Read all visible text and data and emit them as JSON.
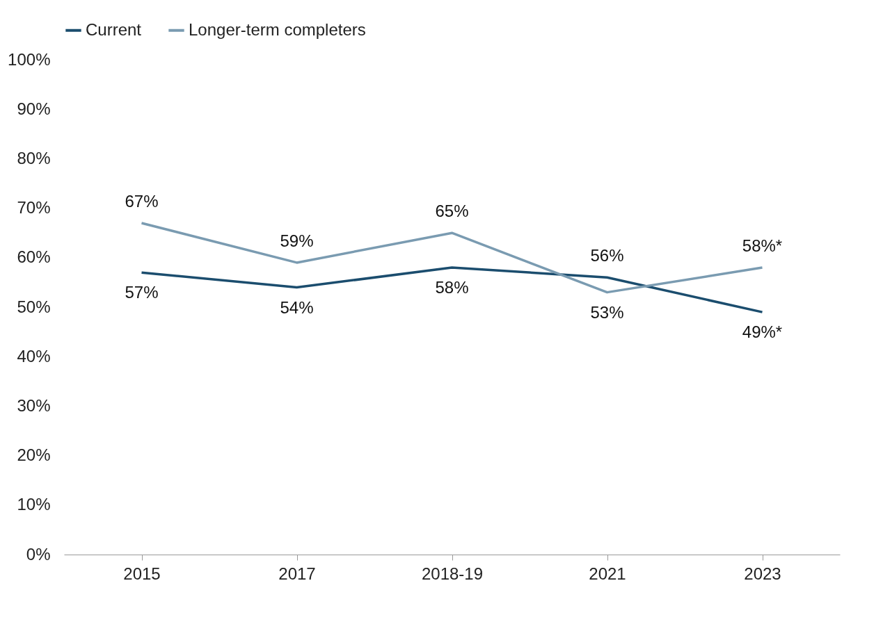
{
  "chart_data": {
    "type": "line",
    "categories": [
      "2015",
      "2017",
      "2018-19",
      "2021",
      "2023"
    ],
    "series": [
      {
        "name": "Current",
        "color": "#1b4d6e",
        "values": [
          57,
          54,
          58,
          56,
          49
        ],
        "value_labels": [
          "57%",
          "54%",
          "58%",
          "56%",
          "49%*"
        ]
      },
      {
        "name": "Longer-term completers",
        "color": "#7a9bb1",
        "values": [
          67,
          59,
          65,
          53,
          58
        ],
        "value_labels": [
          "67%",
          "59%",
          "65%",
          "53%",
          "58%*"
        ]
      }
    ],
    "ylim": [
      0,
      100
    ],
    "yticks": [
      {
        "value": 0,
        "label": "0%"
      },
      {
        "value": 10,
        "label": "10%"
      },
      {
        "value": 20,
        "label": "20%"
      },
      {
        "value": 30,
        "label": "30%"
      },
      {
        "value": 40,
        "label": "40%"
      },
      {
        "value": 50,
        "label": "50%"
      },
      {
        "value": 60,
        "label": "60%"
      },
      {
        "value": 70,
        "label": "70%"
      },
      {
        "value": 80,
        "label": "80%"
      },
      {
        "value": 90,
        "label": "90%"
      },
      {
        "value": 100,
        "label": "100%"
      }
    ],
    "legend": "top"
  }
}
